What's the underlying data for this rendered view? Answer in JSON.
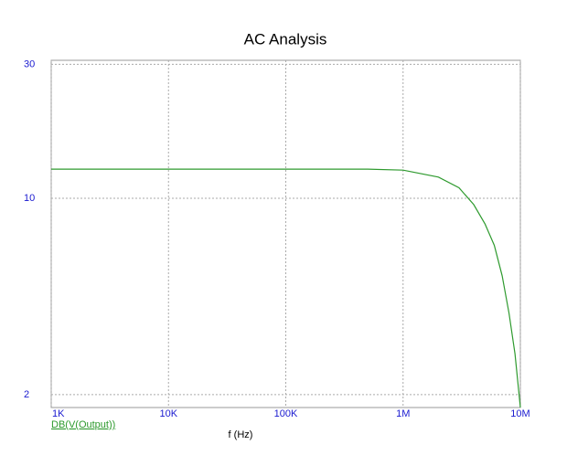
{
  "chart_data": {
    "type": "line",
    "title": "AC Analysis",
    "x_label": "f (Hz)",
    "log_x": true,
    "log_y": true,
    "grid": true,
    "x": [
      1000,
      10000,
      100000,
      500000,
      1000000,
      2000000,
      3000000,
      4000000,
      5000000,
      6000000,
      7000000,
      8000000,
      9000000,
      10000000
    ],
    "series": [
      {
        "name": "DB(V(Output))",
        "color": "#2e9a2e",
        "values": [
          12.7,
          12.7,
          12.7,
          12.7,
          12.6,
          11.9,
          10.9,
          9.5,
          8.1,
          6.8,
          5.3,
          3.9,
          2.8,
          1.8
        ]
      }
    ],
    "xlim": [
      1000,
      10000000
    ],
    "xticks": [
      {
        "value": 1000,
        "label": "1K"
      },
      {
        "value": 10000,
        "label": "10K"
      },
      {
        "value": 100000,
        "label": "100K"
      },
      {
        "value": 1000000,
        "label": "1M"
      },
      {
        "value": 10000000,
        "label": "10M"
      }
    ],
    "ylim": [
      1.8,
      31
    ],
    "yticks": [
      2,
      10,
      30
    ]
  }
}
